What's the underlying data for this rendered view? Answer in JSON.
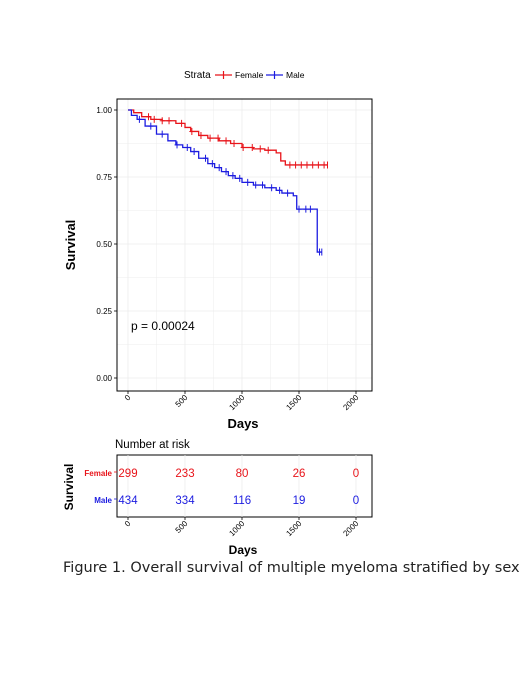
{
  "colors": {
    "female": "#e8141a",
    "male": "#1c1ce0",
    "grid": "#ececec",
    "axis": "#000000"
  },
  "legend": {
    "title": "Strata",
    "entries": [
      "Female",
      "Male"
    ]
  },
  "pvalue": "p = 0.00024",
  "caption": "Figure 1. Overall survival of multiple myeloma stratified by sex",
  "chart_data": [
    {
      "type": "line",
      "subtype": "kaplan-meier-step",
      "xlabel": "Days",
      "ylabel": "Survival",
      "xlim": [
        0,
        2000
      ],
      "ylim": [
        0,
        1
      ],
      "xticks": [
        "0",
        "500",
        "1000",
        "1500",
        "2000"
      ],
      "yticks": [
        "0.00",
        "0.25",
        "0.50",
        "0.75",
        "1.00"
      ],
      "grid": true,
      "legend_position": "top",
      "series": [
        {
          "name": "Female",
          "x": [
            0,
            50,
            120,
            200,
            300,
            420,
            500,
            550,
            620,
            700,
            800,
            900,
            1000,
            1100,
            1200,
            1300,
            1340,
            1380,
            1750
          ],
          "y": [
            1.0,
            0.99,
            0.975,
            0.965,
            0.96,
            0.95,
            0.935,
            0.92,
            0.905,
            0.895,
            0.885,
            0.875,
            0.86,
            0.855,
            0.85,
            0.84,
            0.81,
            0.795,
            0.795
          ],
          "censor_x": [
            180,
            230,
            300,
            360,
            470,
            560,
            640,
            720,
            790,
            860,
            930,
            1010,
            1090,
            1160,
            1230,
            1420,
            1470,
            1520,
            1570,
            1620,
            1670,
            1720
          ]
        },
        {
          "name": "Male",
          "x": [
            0,
            30,
            80,
            150,
            250,
            350,
            420,
            480,
            550,
            620,
            700,
            760,
            820,
            880,
            940,
            1000,
            1100,
            1200,
            1300,
            1350,
            1450,
            1480,
            1640,
            1660,
            1700
          ],
          "y": [
            1.0,
            0.98,
            0.965,
            0.94,
            0.91,
            0.885,
            0.87,
            0.86,
            0.845,
            0.82,
            0.8,
            0.785,
            0.77,
            0.755,
            0.745,
            0.73,
            0.72,
            0.71,
            0.7,
            0.69,
            0.68,
            0.63,
            0.63,
            0.47,
            0.47
          ],
          "censor_x": [
            100,
            200,
            300,
            430,
            520,
            580,
            680,
            740,
            800,
            860,
            920,
            980,
            1050,
            1120,
            1180,
            1260,
            1330,
            1400,
            1500,
            1560,
            1600,
            1680
          ]
        }
      ]
    },
    {
      "type": "table",
      "title": "Number at risk",
      "xlabel": "Days",
      "ylabel": "Survival",
      "xlim": [
        0,
        2000
      ],
      "xticks": [
        "0",
        "500",
        "1000",
        "1500",
        "2000"
      ],
      "rows": [
        {
          "name": "Female",
          "values": [
            299,
            233,
            80,
            26,
            0
          ]
        },
        {
          "name": "Male",
          "values": [
            434,
            334,
            116,
            19,
            0
          ]
        }
      ]
    }
  ]
}
